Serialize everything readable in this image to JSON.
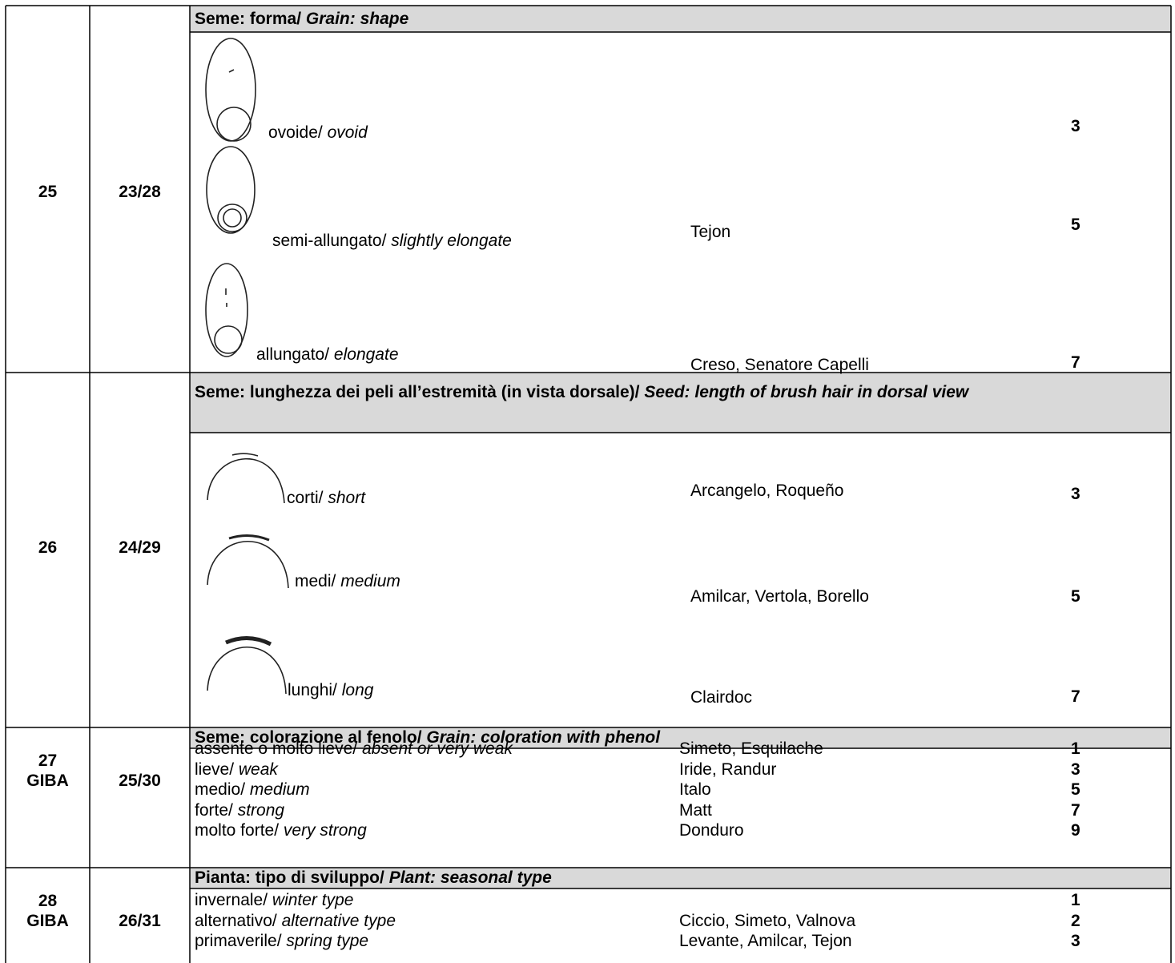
{
  "rows": [
    {
      "number": "25",
      "code": "23/28",
      "heading": "Seme: forma/",
      "heading_en": "Grain: shape",
      "items": [
        {
          "label": "ovoide/",
          "label_en": "ovoid",
          "note": "3"
        },
        {
          "label": "semi-allungato/",
          "label_en": "slightly elongate",
          "examples": "Tejon",
          "note": "5"
        },
        {
          "label": "allungato/",
          "label_en": "elongate",
          "examples": "Creso, Senatore Capelli",
          "note": "7"
        }
      ]
    },
    {
      "number": "26",
      "code": "24/29",
      "heading": "Seme: lunghezza dei peli all’estremità (in vista dorsale)/",
      "heading_en": "Seed: length of brush hair in dorsal view",
      "items": [
        {
          "label": "corti/",
          "label_en": "short",
          "examples": "Arcangelo, Roqueño",
          "note": "3"
        },
        {
          "label": "medi/",
          "label_en": "medium",
          "examples": "Amilcar, Vertola, Borello",
          "note": "5"
        },
        {
          "label": "lunghi/",
          "label_en": "long",
          "examples": "Clairdoc",
          "note": "7"
        }
      ]
    },
    {
      "number": "27",
      "tag": "GIBA",
      "code": "25/30",
      "heading": "Seme: colorazione al fenolo/",
      "heading_en": "Grain: coloration with phenol",
      "items": [
        {
          "label": "assente o molto lieve/",
          "label_en": "absent or very weak",
          "examples": "Simeto, Esquilache",
          "note": "1"
        },
        {
          "label": "lieve/",
          "label_en": "weak",
          "examples": "Iride, Randur",
          "note": "3"
        },
        {
          "label": "medio/",
          "label_en": "medium",
          "examples": "Italo",
          "note": "5"
        },
        {
          "label": "forte/",
          "label_en": "strong",
          "examples": "Matt",
          "note": "7"
        },
        {
          "label": "molto forte/",
          "label_en": "very strong",
          "examples": "Donduro",
          "note": "9"
        }
      ]
    },
    {
      "number": "28",
      "tag": "GIBA",
      "code": "26/31",
      "heading": "Pianta: tipo di sviluppo/",
      "heading_en": "Plant: seasonal type",
      "items": [
        {
          "label": "invernale/",
          "label_en": "winter type",
          "note": "1"
        },
        {
          "label": "alternativo/",
          "label_en": "alternative type",
          "examples": "Ciccio, Simeto, Valnova",
          "note": "2"
        },
        {
          "label": "primaverile/",
          "label_en": "spring type",
          "examples": "Levante, Amilcar, Tejon",
          "note": "3"
        }
      ]
    }
  ]
}
